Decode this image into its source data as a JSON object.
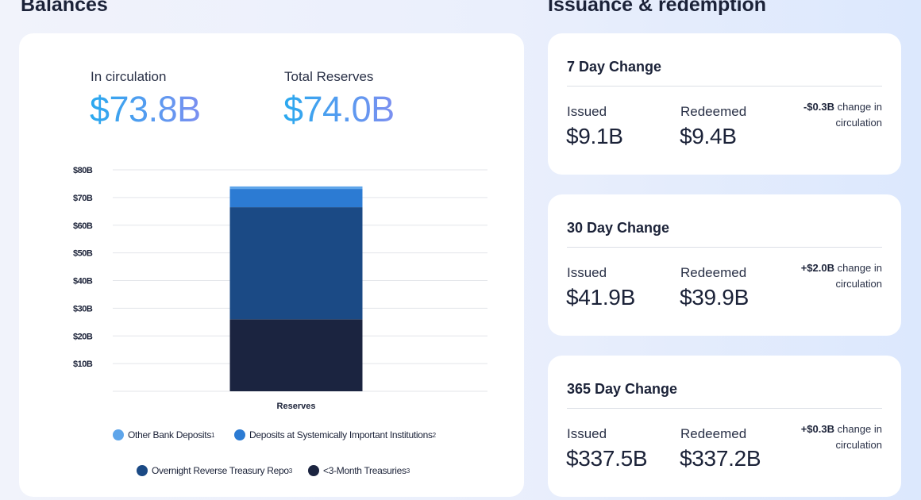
{
  "balances": {
    "title": "Balances",
    "in_circulation": {
      "label": "In circulation",
      "value": "$73.8B"
    },
    "total_reserves": {
      "label": "Total Reserves",
      "value": "$74.0B"
    }
  },
  "chart_data": {
    "type": "bar",
    "stacked": true,
    "categories": [
      "Reserves"
    ],
    "series": [
      {
        "name": "<3-Month Treasuries",
        "superscript": "3",
        "values": [
          26
        ],
        "color": "#1b2440"
      },
      {
        "name": "Overnight Reverse Treasury Repo",
        "superscript": "3",
        "values": [
          40.5
        ],
        "color": "#1b4a85"
      },
      {
        "name": "Deposits at Systemically Important Institutions",
        "superscript": "2",
        "values": [
          6.6
        ],
        "color": "#2c7bd3"
      },
      {
        "name": "Other Bank Deposits",
        "superscript": "1",
        "values": [
          0.9
        ],
        "color": "#5ea5ea"
      }
    ],
    "y_tick_labels": [
      "$10B",
      "$20B",
      "$30B",
      "$40B",
      "$50B",
      "$60B",
      "$70B",
      "$80B"
    ],
    "y_ticks": [
      10,
      20,
      30,
      40,
      50,
      60,
      70,
      80
    ],
    "ylim": [
      0,
      80
    ],
    "grid": true,
    "legend_position": "bottom"
  },
  "issuance": {
    "title": "Issuance & redemption",
    "cards": [
      {
        "title": "7 Day Change",
        "issued_label": "Issued",
        "issued": "$9.1B",
        "redeemed_label": "Redeemed",
        "redeemed": "$9.4B",
        "change": "-$0.3B",
        "change_text": "change in circulation"
      },
      {
        "title": "30 Day Change",
        "issued_label": "Issued",
        "issued": "$41.9B",
        "redeemed_label": "Redeemed",
        "redeemed": "$39.9B",
        "change": "+$2.0B",
        "change_text": "change in circulation"
      },
      {
        "title": "365 Day Change",
        "issued_label": "Issued",
        "issued": "$337.5B",
        "redeemed_label": "Redeemed",
        "redeemed": "$337.2B",
        "change": "+$0.3B",
        "change_text": "change in circulation"
      }
    ]
  }
}
